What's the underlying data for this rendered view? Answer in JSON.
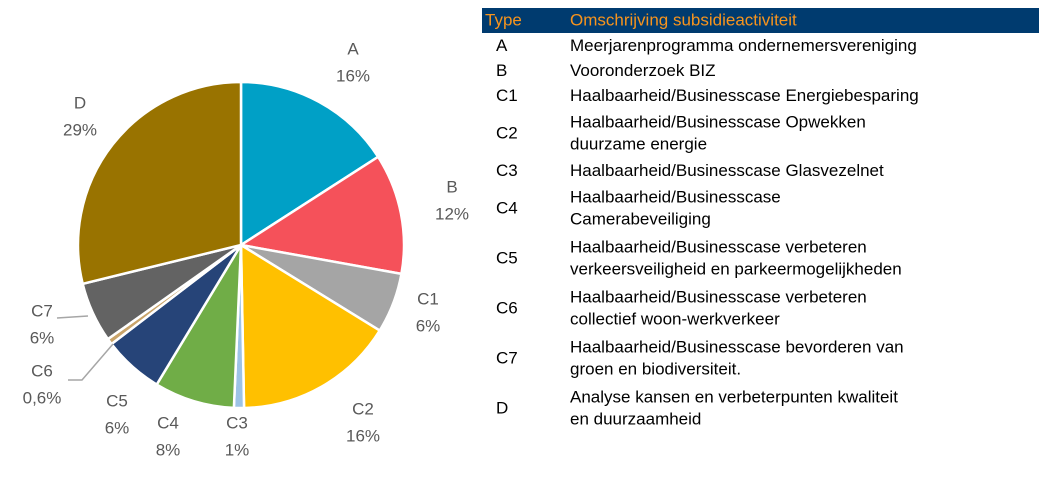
{
  "chart_data": {
    "type": "pie",
    "categories": [
      "A",
      "B",
      "C1",
      "C2",
      "C3",
      "C4",
      "C5",
      "C6",
      "C7",
      "D"
    ],
    "values": [
      16,
      12,
      6,
      16,
      1,
      8,
      6,
      0.6,
      6,
      29
    ],
    "value_labels": [
      "16%",
      "12%",
      "6%",
      "16%",
      "1%",
      "8%",
      "6%",
      "0,6%",
      "6%",
      "29%"
    ],
    "colors": [
      "#00a0c6",
      "#f5515a",
      "#a5a5a5",
      "#ffc000",
      "#9dc3e6",
      "#70ad47",
      "#264478",
      "#c9a46a",
      "#636363",
      "#997300"
    ]
  },
  "table": {
    "header": [
      "Type",
      "Omschrijving subsidieactiviteit"
    ],
    "rows": [
      {
        "type": "A",
        "description": [
          "Meerjarenprogramma ondernemersvereniging"
        ]
      },
      {
        "type": "B",
        "description": [
          "Vooronderzoek BIZ"
        ]
      },
      {
        "type": "C1",
        "description": [
          "Haalbaarheid/Businesscase Energiebesparing"
        ]
      },
      {
        "type": "C2",
        "description": [
          "Haalbaarheid/Businesscase Opwekken",
          "duurzame energie"
        ]
      },
      {
        "type": "C3",
        "description": [
          "Haalbaarheid/Businesscase Glasvezelnet"
        ]
      },
      {
        "type": "C4",
        "description": [
          "Haalbaarheid/Businesscase",
          "Camerabeveiliging"
        ]
      },
      {
        "type": "C5",
        "description": [
          "Haalbaarheid/Businesscase verbeteren",
          "verkeersveiligheid en parkeermogelijkheden"
        ]
      },
      {
        "type": "C6",
        "description": [
          "Haalbaarheid/Businesscase verbeteren",
          "collectief woon-werkverkeer"
        ]
      },
      {
        "type": "C7",
        "description": [
          "Haalbaarheid/Businesscase bevorderen van",
          "groen en biodiversiteit."
        ]
      },
      {
        "type": "D",
        "description": [
          "Analyse kansen en verbeterpunten kwaliteit",
          "en duurzaamheid"
        ]
      }
    ]
  }
}
